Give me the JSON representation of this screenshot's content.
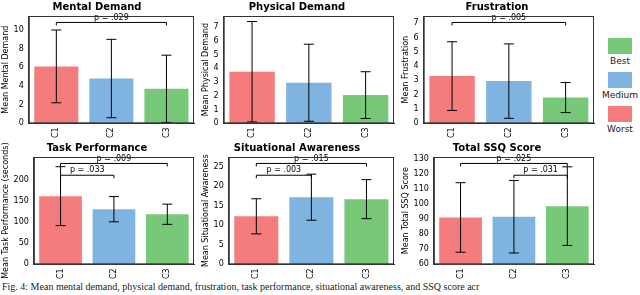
{
  "figure": {
    "caption": "Fig. 4: Mean mental demand, physical demand, frustration, task performance, situational awareness, and SSQ score acr",
    "legend_items": [
      {
        "name": "Best",
        "color": "#78c87a"
      },
      {
        "name": "Medium",
        "color": "#7fb3e0"
      },
      {
        "name": "Worst",
        "color": "#f47c7c"
      }
    ]
  },
  "chart_data": [
    {
      "type": "bar",
      "title": "Mental Demand",
      "y_label": "Mean Mental Demand",
      "categories": [
        "C1",
        "C2",
        "C3"
      ],
      "values": [
        6.1,
        4.8,
        3.7
      ],
      "errors": [
        3.9,
        4.2,
        3.6
      ],
      "colors": [
        "#f47c7c",
        "#7fb3e0",
        "#78c87a"
      ],
      "ylim": [
        0,
        11.5
      ],
      "yticks": [
        0,
        2,
        4,
        6,
        8,
        10
      ],
      "grid": false,
      "annotations": [
        {
          "text": "p = .029",
          "from": "C1",
          "to": "C3"
        }
      ]
    },
    {
      "type": "bar",
      "title": "Physical Demand",
      "y_label": "Mean Physical Demand",
      "categories": [
        "C1",
        "C2",
        "C3"
      ],
      "values": [
        3.75,
        2.95,
        2.05
      ],
      "errors": [
        3.65,
        2.8,
        1.7
      ],
      "colors": [
        "#f47c7c",
        "#7fb3e0",
        "#78c87a"
      ],
      "ylim": [
        0,
        7.8
      ],
      "yticks": [
        0,
        1,
        2,
        3,
        4,
        5,
        6,
        7
      ],
      "grid": false,
      "annotations": []
    },
    {
      "type": "bar",
      "title": "Frustration",
      "y_label": "Mean Frustration",
      "categories": [
        "C1",
        "C2",
        "C3"
      ],
      "values": [
        3.3,
        2.95,
        1.8
      ],
      "errors": [
        2.4,
        2.6,
        1.05
      ],
      "colors": [
        "#f47c7c",
        "#7fb3e0",
        "#78c87a"
      ],
      "ylim": [
        0,
        7.5
      ],
      "yticks": [
        0,
        1,
        2,
        3,
        4,
        5,
        6,
        7
      ],
      "grid": false,
      "annotations": [
        {
          "text": "p = .005",
          "from": "C1",
          "to": "C3"
        }
      ]
    },
    {
      "type": "bar",
      "title": "Task Performance",
      "y_label": "Mean Task Performance (seconds)",
      "categories": [
        "C1",
        "C2",
        "C3"
      ],
      "values": [
        162,
        131,
        119
      ],
      "errors": [
        70,
        30,
        24
      ],
      "colors": [
        "#f47c7c",
        "#7fb3e0",
        "#78c87a"
      ],
      "ylim": [
        0,
        255
      ],
      "yticks": [
        0,
        50,
        100,
        150,
        200
      ],
      "grid": false,
      "annotations": [
        {
          "text": "p = .009",
          "from": "C1",
          "to": "C3"
        },
        {
          "text": "p = .033",
          "from": "C1",
          "to": "C2"
        }
      ]
    },
    {
      "type": "bar",
      "title": "Situational Awareness",
      "y_label": "Mean Situational Awareness",
      "categories": [
        "C1",
        "C2",
        "C3"
      ],
      "values": [
        12.3,
        17.2,
        16.7
      ],
      "errors": [
        4.5,
        5.9,
        5.0
      ],
      "colors": [
        "#f47c7c",
        "#7fb3e0",
        "#78c87a"
      ],
      "ylim": [
        0,
        27.5
      ],
      "yticks": [
        0,
        5,
        10,
        15,
        20,
        25
      ],
      "grid": false,
      "annotations": [
        {
          "text": "p = .015",
          "from": "C1",
          "to": "C3"
        },
        {
          "text": "p = .003",
          "from": "C1",
          "to": "C2"
        }
      ]
    },
    {
      "type": "bar",
      "title": "Total SSQ Score",
      "y_label": "Mean Total SSQ Score",
      "categories": [
        "C1",
        "C2",
        "C3"
      ],
      "values": [
        91,
        91.5,
        98.5
      ],
      "errors": [
        23,
        24,
        26
      ],
      "colors": [
        "#f47c7c",
        "#7fb3e0",
        "#78c87a"
      ],
      "ylim": [
        60,
        131
      ],
      "yticks": [
        60,
        70,
        80,
        90,
        100,
        110,
        120,
        130
      ],
      "grid": false,
      "annotations": [
        {
          "text": "p = .025",
          "from": "C1",
          "to": "C3"
        },
        {
          "text": "p = .031",
          "from": "C2",
          "to": "C3"
        }
      ]
    }
  ]
}
